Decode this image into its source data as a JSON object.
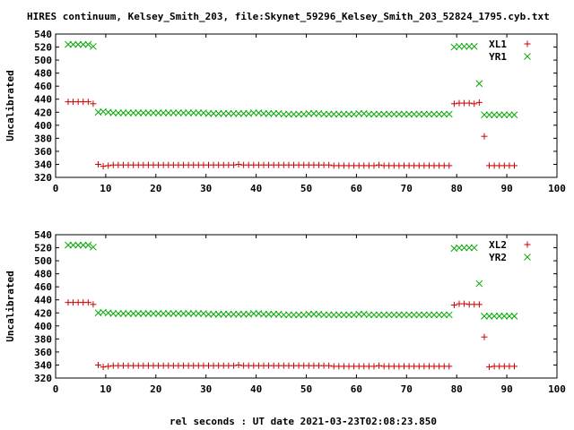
{
  "figure": {
    "title": "HIRES continuum, Kelsey_Smith_203, file:Skynet_59296_Kelsey_Smith_203_52824_1795.cyb.txt",
    "xlabel": "rel seconds : UT date 2021-03-23T02:08:23.850"
  },
  "colors": {
    "xl": "#cc0000",
    "yr": "#00aa00",
    "axis": "#000000"
  },
  "chart_data": [
    {
      "type": "scatter",
      "ylabel": "Uncalibrated",
      "xlim": [
        0,
        100
      ],
      "ylim": [
        320,
        540
      ],
      "xticks": [
        0,
        10,
        20,
        30,
        40,
        50,
        60,
        70,
        80,
        90,
        100
      ],
      "yticks": [
        320,
        340,
        360,
        380,
        400,
        420,
        440,
        460,
        480,
        500,
        520,
        540
      ],
      "legend": "top-right",
      "grid": false,
      "series": [
        {
          "name": "XL1",
          "marker": "plus",
          "x": [
            2.5,
            3.5,
            4.5,
            5.5,
            6.5,
            7.5,
            8.5,
            9.5,
            10.5,
            11.5,
            12.5,
            13.5,
            14.5,
            15.5,
            16.5,
            17.5,
            18.5,
            19.5,
            20.5,
            21.5,
            22.5,
            23.5,
            24.5,
            25.5,
            26.5,
            27.5,
            28.5,
            29.5,
            30.5,
            31.5,
            32.5,
            33.5,
            34.5,
            35.5,
            36.5,
            37.5,
            38.5,
            39.5,
            40.5,
            41.5,
            42.5,
            43.5,
            44.5,
            45.5,
            46.5,
            47.5,
            48.5,
            49.5,
            50.5,
            51.5,
            52.5,
            53.5,
            54.5,
            55.5,
            56.5,
            57.5,
            58.5,
            59.5,
            60.5,
            61.5,
            62.5,
            63.5,
            64.5,
            65.5,
            66.5,
            67.5,
            68.5,
            69.5,
            70.5,
            71.5,
            72.5,
            73.5,
            74.5,
            75.5,
            76.5,
            77.5,
            78.5,
            79.5,
            80.5,
            81.5,
            82.5,
            83.5,
            84.5,
            85.5,
            86.5,
            87.5,
            88.5,
            89.5,
            90.5,
            91.5
          ],
          "y": [
            436,
            436,
            436,
            436,
            436,
            433,
            340,
            337,
            338,
            339,
            339,
            339,
            339,
            339,
            339,
            339,
            339,
            339,
            339,
            339,
            339,
            339,
            339,
            339,
            339,
            339,
            339,
            339,
            339,
            339,
            339,
            339,
            339,
            339,
            340,
            339,
            339,
            339,
            339,
            339,
            339,
            339,
            339,
            339,
            339,
            339,
            339,
            339,
            339,
            339,
            339,
            339,
            339,
            338,
            338,
            338,
            338,
            338,
            338,
            338,
            338,
            338,
            339,
            338,
            338,
            338,
            338,
            338,
            338,
            338,
            338,
            338,
            338,
            338,
            338,
            338,
            338,
            433,
            434,
            434,
            434,
            433,
            435,
            383,
            338,
            338,
            338,
            338,
            338,
            338
          ]
        },
        {
          "name": "YR1",
          "marker": "cross",
          "x": [
            2.5,
            3.5,
            4.5,
            5.5,
            6.5,
            7.5,
            8.5,
            9.5,
            10.5,
            11.5,
            12.5,
            13.5,
            14.5,
            15.5,
            16.5,
            17.5,
            18.5,
            19.5,
            20.5,
            21.5,
            22.5,
            23.5,
            24.5,
            25.5,
            26.5,
            27.5,
            28.5,
            29.5,
            30.5,
            31.5,
            32.5,
            33.5,
            34.5,
            35.5,
            36.5,
            37.5,
            38.5,
            39.5,
            40.5,
            41.5,
            42.5,
            43.5,
            44.5,
            45.5,
            46.5,
            47.5,
            48.5,
            49.5,
            50.5,
            51.5,
            52.5,
            53.5,
            54.5,
            55.5,
            56.5,
            57.5,
            58.5,
            59.5,
            60.5,
            61.5,
            62.5,
            63.5,
            64.5,
            65.5,
            66.5,
            67.5,
            68.5,
            69.5,
            70.5,
            71.5,
            72.5,
            73.5,
            74.5,
            75.5,
            76.5,
            77.5,
            78.5,
            79.5,
            80.5,
            81.5,
            82.5,
            83.5,
            84.5,
            85.5,
            86.5,
            87.5,
            88.5,
            89.5,
            90.5,
            91.5
          ],
          "y": [
            524,
            524,
            524,
            524,
            524,
            521,
            420,
            421,
            420,
            419,
            419,
            419,
            419,
            419,
            419,
            419,
            419,
            419,
            419,
            419,
            419,
            419,
            419,
            419,
            419,
            419,
            419,
            419,
            418,
            418,
            418,
            418,
            418,
            418,
            418,
            418,
            418,
            419,
            419,
            418,
            418,
            418,
            418,
            417,
            417,
            417,
            417,
            417,
            418,
            418,
            418,
            417,
            417,
            417,
            417,
            417,
            417,
            417,
            418,
            418,
            417,
            417,
            417,
            417,
            417,
            417,
            417,
            417,
            417,
            417,
            417,
            417,
            417,
            417,
            417,
            417,
            417,
            520,
            521,
            521,
            521,
            521,
            464,
            416,
            416,
            416,
            416,
            416,
            416,
            416
          ]
        }
      ]
    },
    {
      "type": "scatter",
      "ylabel": "Uncalibrated",
      "xlim": [
        0,
        100
      ],
      "ylim": [
        320,
        540
      ],
      "xticks": [
        0,
        10,
        20,
        30,
        40,
        50,
        60,
        70,
        80,
        90,
        100
      ],
      "yticks": [
        320,
        340,
        360,
        380,
        400,
        420,
        440,
        460,
        480,
        500,
        520,
        540
      ],
      "legend": "top-right",
      "grid": false,
      "series": [
        {
          "name": "XL2",
          "marker": "plus",
          "x": [
            2.5,
            3.5,
            4.5,
            5.5,
            6.5,
            7.5,
            8.5,
            9.5,
            10.5,
            11.5,
            12.5,
            13.5,
            14.5,
            15.5,
            16.5,
            17.5,
            18.5,
            19.5,
            20.5,
            21.5,
            22.5,
            23.5,
            24.5,
            25.5,
            26.5,
            27.5,
            28.5,
            29.5,
            30.5,
            31.5,
            32.5,
            33.5,
            34.5,
            35.5,
            36.5,
            37.5,
            38.5,
            39.5,
            40.5,
            41.5,
            42.5,
            43.5,
            44.5,
            45.5,
            46.5,
            47.5,
            48.5,
            49.5,
            50.5,
            51.5,
            52.5,
            53.5,
            54.5,
            55.5,
            56.5,
            57.5,
            58.5,
            59.5,
            60.5,
            61.5,
            62.5,
            63.5,
            64.5,
            65.5,
            66.5,
            67.5,
            68.5,
            69.5,
            70.5,
            71.5,
            72.5,
            73.5,
            74.5,
            75.5,
            76.5,
            77.5,
            78.5,
            79.5,
            80.5,
            81.5,
            82.5,
            83.5,
            84.5,
            85.5,
            86.5,
            87.5,
            88.5,
            89.5,
            90.5,
            91.5
          ],
          "y": [
            436,
            436,
            436,
            436,
            436,
            433,
            340,
            337,
            338,
            339,
            339,
            339,
            339,
            339,
            339,
            339,
            339,
            339,
            339,
            339,
            339,
            339,
            339,
            339,
            339,
            339,
            339,
            339,
            339,
            339,
            339,
            339,
            339,
            339,
            340,
            339,
            339,
            339,
            339,
            339,
            339,
            339,
            339,
            339,
            339,
            339,
            339,
            339,
            339,
            339,
            339,
            339,
            339,
            338,
            338,
            338,
            338,
            338,
            338,
            338,
            338,
            338,
            339,
            338,
            338,
            338,
            338,
            338,
            338,
            338,
            338,
            338,
            338,
            338,
            338,
            338,
            338,
            432,
            434,
            434,
            433,
            433,
            433,
            383,
            337,
            338,
            338,
            338,
            338,
            338
          ]
        },
        {
          "name": "YR2",
          "marker": "cross",
          "x": [
            2.5,
            3.5,
            4.5,
            5.5,
            6.5,
            7.5,
            8.5,
            9.5,
            10.5,
            11.5,
            12.5,
            13.5,
            14.5,
            15.5,
            16.5,
            17.5,
            18.5,
            19.5,
            20.5,
            21.5,
            22.5,
            23.5,
            24.5,
            25.5,
            26.5,
            27.5,
            28.5,
            29.5,
            30.5,
            31.5,
            32.5,
            33.5,
            34.5,
            35.5,
            36.5,
            37.5,
            38.5,
            39.5,
            40.5,
            41.5,
            42.5,
            43.5,
            44.5,
            45.5,
            46.5,
            47.5,
            48.5,
            49.5,
            50.5,
            51.5,
            52.5,
            53.5,
            54.5,
            55.5,
            56.5,
            57.5,
            58.5,
            59.5,
            60.5,
            61.5,
            62.5,
            63.5,
            64.5,
            65.5,
            66.5,
            67.5,
            68.5,
            69.5,
            70.5,
            71.5,
            72.5,
            73.5,
            74.5,
            75.5,
            76.5,
            77.5,
            78.5,
            79.5,
            80.5,
            81.5,
            82.5,
            83.5,
            84.5,
            85.5,
            86.5,
            87.5,
            88.5,
            89.5,
            90.5,
            91.5
          ],
          "y": [
            524,
            524,
            524,
            524,
            524,
            521,
            420,
            421,
            420,
            419,
            419,
            419,
            419,
            419,
            419,
            419,
            419,
            419,
            419,
            419,
            419,
            419,
            419,
            419,
            419,
            419,
            419,
            419,
            418,
            418,
            418,
            418,
            418,
            418,
            418,
            418,
            418,
            419,
            419,
            418,
            418,
            418,
            418,
            417,
            417,
            417,
            417,
            417,
            418,
            418,
            418,
            417,
            417,
            417,
            417,
            417,
            417,
            417,
            418,
            418,
            417,
            417,
            417,
            417,
            417,
            417,
            417,
            417,
            417,
            417,
            417,
            417,
            417,
            417,
            417,
            417,
            417,
            519,
            520,
            520,
            520,
            520,
            465,
            415,
            415,
            415,
            415,
            415,
            415,
            415
          ]
        }
      ]
    }
  ]
}
